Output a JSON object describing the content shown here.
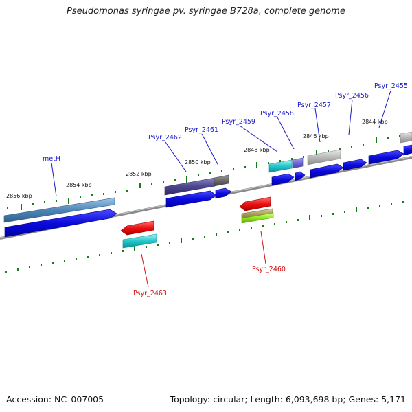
{
  "title": "Pseudomonas syringae pv. syringae B728a, complete genome",
  "footer": {
    "accession_label": "Accession:",
    "accession": "NC_007005",
    "topology_label": "Topology:",
    "topology": "circular",
    "length_label": "Length:",
    "length": "6,093,698 bp",
    "genes_label": "Genes:",
    "genes": "5,171"
  },
  "kbp_labels": [
    "2856 kbp",
    "2854 kbp",
    "2852 kbp",
    "2850 kbp",
    "2848 kbp",
    "2846 kbp",
    "2844 kbp"
  ],
  "gene_labels": {
    "metH": "metH",
    "psyr2462": "Psyr_2462",
    "psyr2461": "Psyr_2461",
    "psyr2459": "Psyr_2459",
    "psyr2458": "Psyr_2458",
    "psyr2457": "Psyr_2457",
    "psyr2456": "Psyr_2456",
    "psyr2455": "Psyr_2455",
    "psyr2463": "Psyr_2463",
    "psyr2460": "Psyr_2460"
  },
  "colors": {
    "forward_label": "#1a1acc",
    "reverse_label": "#cc1111",
    "cds_blue": "#0b0bdc",
    "tick": "#1a7a1a",
    "backbone": "#888888"
  }
}
